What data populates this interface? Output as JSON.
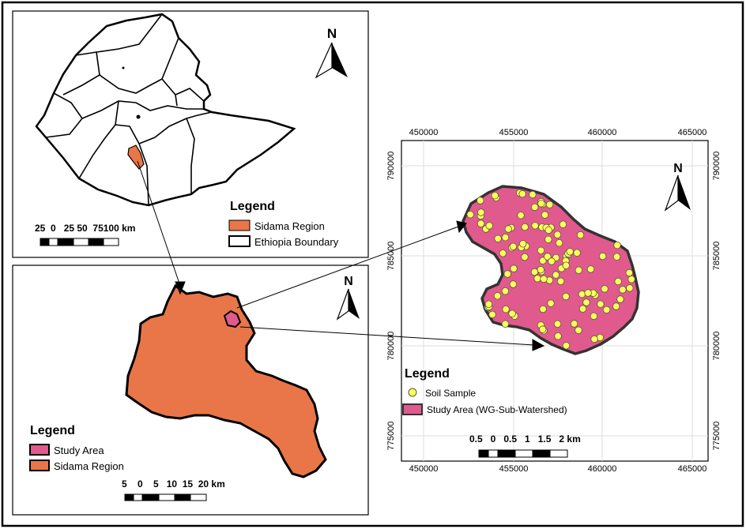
{
  "north_label": "N",
  "ethiopia_panel": {
    "legend_title": "Legend",
    "legend_items": [
      "Sidama Region",
      "Ethiopia Boundary"
    ],
    "scale_text": "25  0   25 50  75100 km"
  },
  "sidama_panel": {
    "legend_title": "Legend",
    "legend_items": [
      "Study Area",
      "Sidama Region"
    ],
    "scale_text": "5    0    5   10  15  20 km"
  },
  "watershed_panel": {
    "legend_title": "Legend",
    "legend_items": [
      "Soil Sample",
      "Study Area (WG-Sub-Watershed)"
    ],
    "scale_text": "0.5   0   0.5   1   1.5   2 km",
    "x_ticks": [
      "450000",
      "455000",
      "460000",
      "465000"
    ],
    "y_ticks": [
      "790000",
      "785000",
      "780000",
      "775000"
    ]
  },
  "colors": {
    "sidama": "#e97648",
    "study_area": "#e05a8e",
    "soil_sample": "#ffff55",
    "outline": "#222222"
  }
}
